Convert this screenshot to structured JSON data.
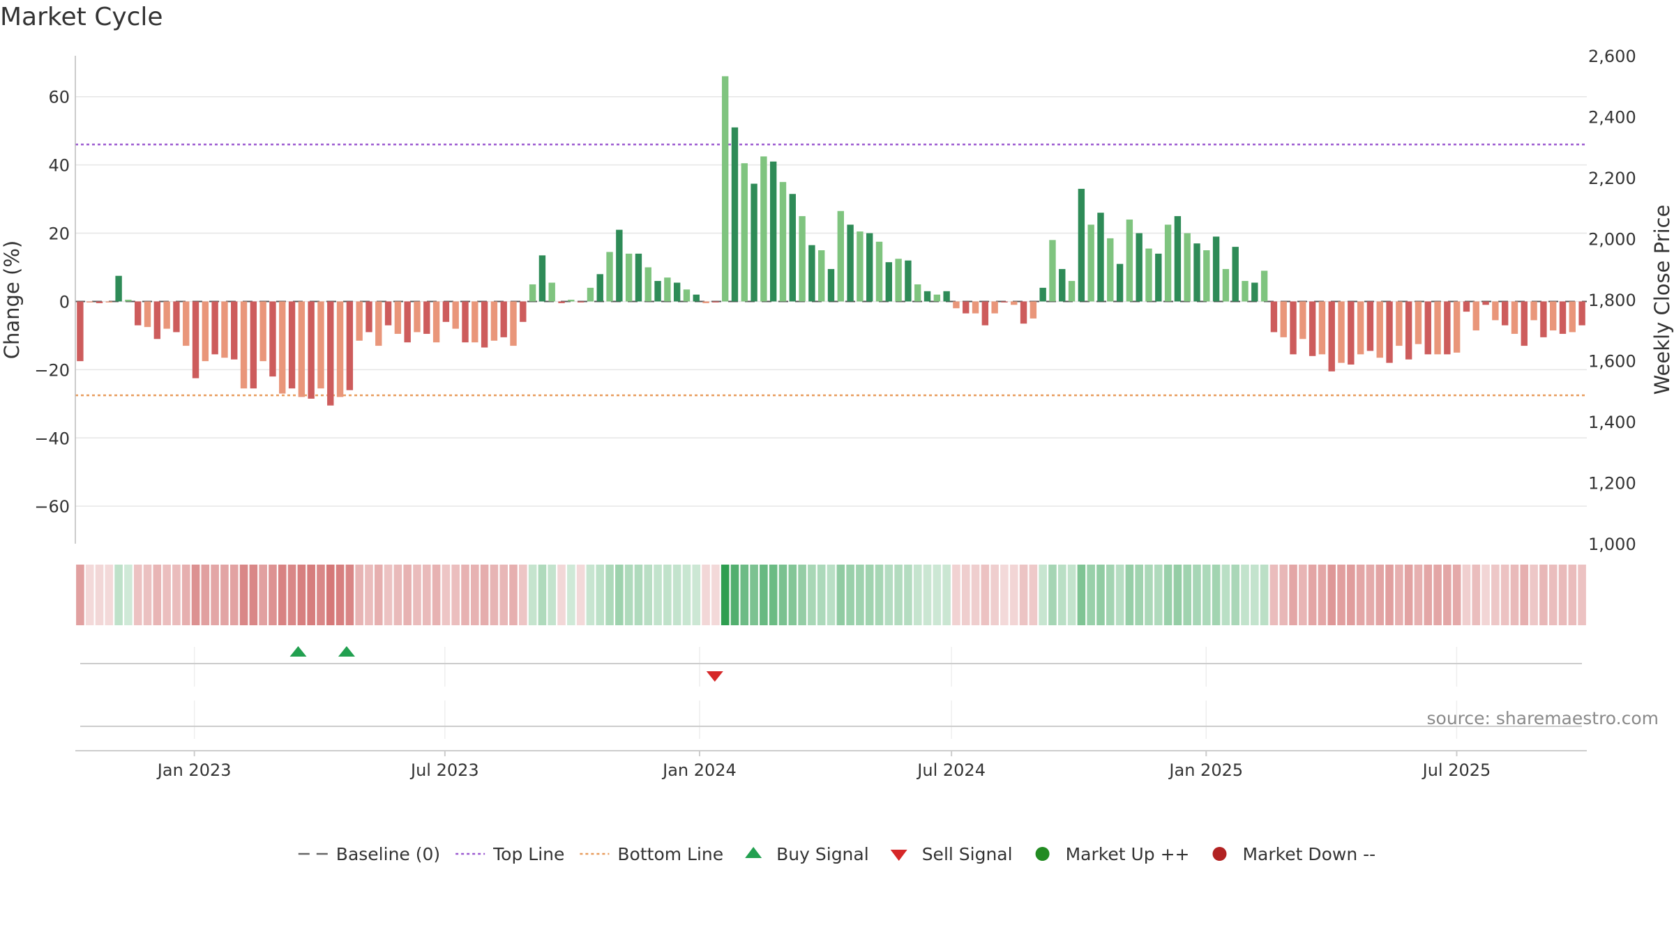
{
  "chart_data": {
    "type": "bar",
    "title": "Market Cycle",
    "ylabel_left": "Change (%)",
    "ylabel_right": "Weekly Close Price",
    "ylim_left": [
      -71,
      72
    ],
    "yticks_left": [
      60,
      40,
      20,
      0,
      -20,
      -40,
      -60
    ],
    "ytick_labels_left": [
      "60",
      "40",
      "20",
      "0",
      "−20",
      "−40",
      "−60"
    ],
    "ylim_right": [
      1000,
      2600
    ],
    "yticks_right": [
      2600,
      2400,
      2200,
      2000,
      1800,
      1600,
      1400,
      1200,
      1000
    ],
    "ytick_labels_right": [
      "2,600",
      "2,400",
      "2,200",
      "2,000",
      "1,800",
      "1,600",
      "1,400",
      "1,200",
      "1,000"
    ],
    "x_start": "2022-10-07",
    "x_end": "2025-10-03",
    "x_ticks": [
      "2023-01-01",
      "2023-07-01",
      "2024-01-01",
      "2024-07-01",
      "2025-01-01",
      "2025-07-01"
    ],
    "x_tick_labels": [
      "Jan 2023",
      "Jul 2023",
      "Jan 2024",
      "Jul 2024",
      "Jan 2025",
      "Jul 2025"
    ],
    "top_line": 46,
    "bottom_line": -27.5,
    "baseline": 0,
    "grid": true,
    "colors": {
      "pos_strong": "#2e8b57",
      "pos_light": "#7fc47f",
      "neg_strong": "#cd5c5c",
      "neg_light": "#e9967a",
      "top_line": "#9b59d0",
      "bottom_line": "#e89a5a",
      "baseline": "#555555",
      "buy": "#22a050",
      "sell": "#d62728",
      "market_up": "#228b22",
      "market_down": "#b22222"
    },
    "series": [
      {
        "name": "Change (%)",
        "values": [
          -17.5,
          0,
          -0.5,
          0,
          7.5,
          0.5,
          -7,
          -7.5,
          -11,
          -8,
          -9,
          -13,
          -22.5,
          -17.5,
          -15.5,
          -16.5,
          -17,
          -25.5,
          -25.5,
          -17.5,
          -22,
          -27,
          -25.5,
          -28,
          -28.5,
          -25.5,
          -30.5,
          -28,
          -26,
          -11.5,
          -9,
          -13,
          -7,
          -9.5,
          -12,
          -9,
          -9.5,
          -12,
          -6,
          -8,
          -12,
          -12,
          -13.5,
          -11.5,
          -10.5,
          -13,
          -6,
          5,
          13.5,
          5.5,
          -0.5,
          0.5,
          0,
          4,
          8,
          14.5,
          21,
          14,
          14,
          10,
          6,
          7,
          5.5,
          3.5,
          2,
          -0.5,
          0,
          66,
          51,
          40.5,
          34.5,
          42.5,
          41,
          35,
          31.5,
          25,
          16.5,
          15,
          9.5,
          26.5,
          22.5,
          20.5,
          20,
          17.5,
          11.5,
          12.5,
          12,
          5,
          3,
          2,
          3,
          -2,
          -3.5,
          -3.5,
          -7,
          -3.5,
          0,
          -1,
          -6.5,
          -5,
          4,
          18,
          9.5,
          6,
          33,
          22.5,
          26,
          18.5,
          11,
          24,
          20,
          15.5,
          14,
          22.5,
          25,
          20,
          17,
          15,
          19,
          9.5,
          16,
          6,
          5.5,
          9,
          -9,
          -10.5,
          -15.5,
          -11,
          -16,
          -15.5,
          -20.5,
          -18,
          -18.5,
          -15.5,
          -14.5,
          -16.5,
          -18,
          -13,
          -17,
          -12.5,
          -15.5,
          -15.5,
          -15.5,
          -15,
          -3,
          -8.5,
          -1,
          -5.5,
          -7,
          -9.5,
          -13,
          -5.5,
          -10.5,
          -8.5,
          -9.5,
          -9,
          -7
        ]
      }
    ],
    "buy_signals": [
      "2023-03-17",
      "2023-04-21"
    ],
    "sell_signals": [
      "2024-01-12"
    ],
    "legend": [
      {
        "label": "Baseline (0)",
        "symbol": "dash",
        "color": "#666666"
      },
      {
        "label": "Top Line",
        "symbol": "dotted",
        "color": "#9b59d0"
      },
      {
        "label": "Bottom Line",
        "symbol": "dotted",
        "color": "#e89a5a"
      },
      {
        "label": "Buy Signal",
        "symbol": "triangle-up",
        "color": "#22a050"
      },
      {
        "label": "Sell Signal",
        "symbol": "triangle-down",
        "color": "#d62728"
      },
      {
        "label": "Market Up ++",
        "symbol": "circle",
        "color": "#228b22"
      },
      {
        "label": "Market Down --",
        "symbol": "circle",
        "color": "#b22222"
      }
    ],
    "legend_position": "bottom",
    "source": "source: sharemaestro.com"
  }
}
